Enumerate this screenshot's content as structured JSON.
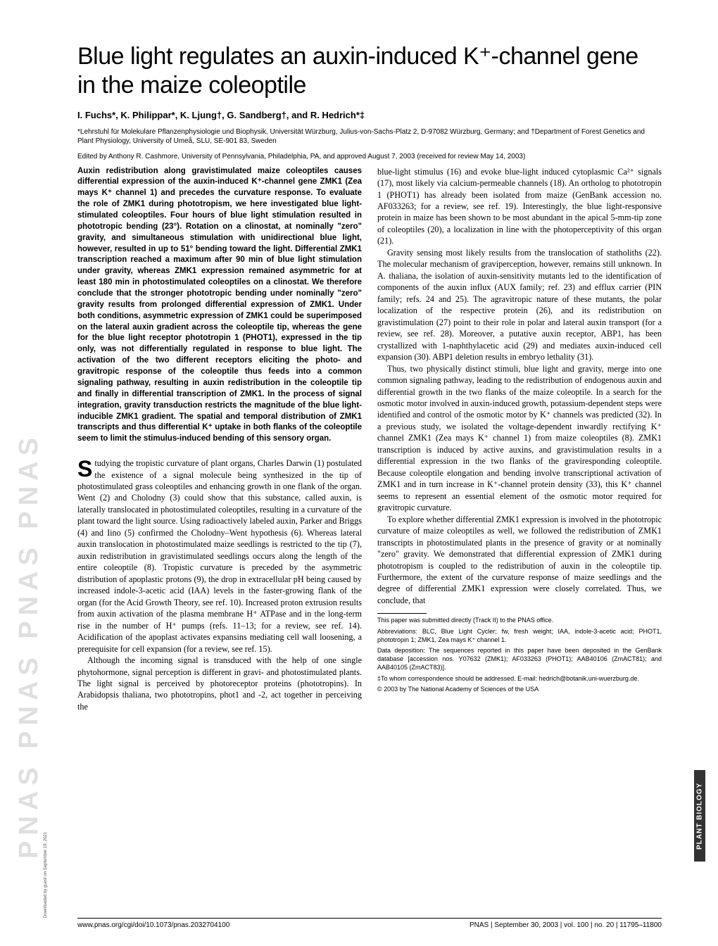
{
  "title": "Blue light regulates an auxin-induced K⁺-channel gene in the maize coleoptile",
  "authors": "I. Fuchs*, K. Philippar*, K. Ljung†, G. Sandberg†, and R. Hedrich*‡",
  "affiliations": "*Lehrstuhl für Molekulare Pflanzenphysiologie und Biophysik, Universität Würzburg, Julius-von-Sachs-Platz 2, D-97082 Würzburg, Germany; and †Department of Forest Genetics and Plant Physiology, University of Umeå, SLU, SE-901 83, Sweden",
  "edited": "Edited by Anthony R. Cashmore, University of Pennsylvania, Philadelphia, PA, and approved August 7, 2003 (received for review May 14, 2003)",
  "abstract": "Auxin redistribution along gravistimulated maize coleoptiles causes differential expression of the auxin-induced K⁺-channel gene ZMK1 (Zea mays K⁺ channel 1) and precedes the curvature response. To evaluate the role of ZMK1 during phototropism, we here investigated blue light-stimulated coleoptiles. Four hours of blue light stimulation resulted in phototropic bending (23°). Rotation on a clinostat, at nominally \"zero\" gravity, and simultaneous stimulation with unidirectional blue light, however, resulted in up to 51° bending toward the light. Differential ZMK1 transcription reached a maximum after 90 min of blue light stimulation under gravity, whereas ZMK1 expression remained asymmetric for at least 180 min in photostimulated coleoptiles on a clinostat. We therefore conclude that the stronger phototropic bending under nominally \"zero\" gravity results from prolonged differential expression of ZMK1. Under both conditions, asymmetric expression of ZMK1 could be superimposed on the lateral auxin gradient across the coleoptile tip, whereas the gene for the blue light receptor phototropin 1 (PHOT1), expressed in the tip only, was not differentially regulated in response to blue light. The activation of the two different receptors eliciting the photo- and gravitropic response of the coleoptile thus feeds into a common signaling pathway, resulting in auxin redistribution in the coleoptile tip and finally in differential transcription of ZMK1. In the process of signal integration, gravity transduction restricts the magnitude of the blue light-inducible ZMK1 gradient. The spatial and temporal distribution of ZMK1 transcripts and thus differential K⁺ uptake in both flanks of the coleoptile seem to limit the stimulus-induced bending of this sensory organ.",
  "body_left_dropcap": "S",
  "body_left_1": "tudying the tropistic curvature of plant organs, Charles Darwin (1) postulated the existence of a signal molecule being synthesized in the tip of photostimulated grass coleoptiles and enhancing growth in one flank of the organ. Went (2) and Cholodny (3) could show that this substance, called auxin, is laterally translocated in photostimulated coleoptiles, resulting in a curvature of the plant toward the light source. Using radioactively labeled auxin, Parker and Briggs (4) and Iino (5) confirmed the Cholodny–Went hypothesis (6). Whereas lateral auxin translocation in photostimulated maize seedlings is restricted to the tip (7), auxin redistribution in gravistimulated seedlings occurs along the length of the entire coleoptile (8). Tropistic curvature is preceded by the asymmetric distribution of apoplastic protons (9), the drop in extracellular pH being caused by increased indole-3-acetic acid (IAA) levels in the faster-growing flank of the organ (for the Acid Growth Theory, see ref. 10). Increased proton extrusion results from auxin activation of the plasma membrane H⁺ ATPase and in the long-term rise in the number of H⁺ pumps (refs. 11–13; for a review, see ref. 14). Acidification of the apoplast activates expansins mediating cell wall loosening, a prerequisite for cell expansion (for a review, see ref. 15).",
  "body_left_2": "Although the incoming signal is transduced with the help of one single phytohormone, signal perception is different in gravi- and photostimulated plants. The light signal is perceived by photoreceptor proteins (phototropins). In Arabidopsis thaliana, two phototropins, phot1 and -2, act together in perceiving the",
  "body_right_1": "blue-light stimulus (16) and evoke blue-light induced cytoplasmic Ca²⁺ signals (17), most likely via calcium-permeable channels (18). An ortholog to phototropin 1 (PHOT1) has already been isolated from maize (GenBank accession no. AF033263; for a review, see ref. 19). Interestingly, the blue light-responsive protein in maize has been shown to be most abundant in the apical 5-mm-tip zone of coleoptiles (20), a localization in line with the photoperceptivity of this organ (21).",
  "body_right_2": "Gravity sensing most likely results from the translocation of statholiths (22). The molecular mechanism of graviperception, however, remains still unknown. In A. thaliana, the isolation of auxin-sensitivity mutants led to the identification of components of the auxin influx (AUX family; ref. 23) and efflux carrier (PIN family; refs. 24 and 25). The agravitropic nature of these mutants, the polar localization of the respective protein (26), and its redistribution on gravistimulation (27) point to their role in polar and lateral auxin transport (for a review, see ref. 28). Moreover, a putative auxin receptor, ABP1, has been crystallized with 1-naphthylacetic acid (29) and mediates auxin-induced cell expansion (30). ABP1 deletion results in embryo lethality (31).",
  "body_right_3": "Thus, two physically distinct stimuli, blue light and gravity, merge into one common signaling pathway, leading to the redistribution of endogenous auxin and differential growth in the two flanks of the maize coleoptile. In a search for the osmotic motor involved in auxin-induced growth, potassium-dependent steps were identified and control of the osmotic motor by K⁺ channels was predicted (32). In a previous study, we isolated the voltage-dependent inwardly rectifying K⁺ channel ZMK1 (Zea mays K⁺ channel 1) from maize coleoptiles (8). ZMK1 transcription is induced by active auxins, and gravistimulation results in a differential expression in the two flanks of the graviresponding coleoptile. Because coleoptile elongation and bending involve transcriptional activation of ZMK1 and in turn increase in K⁺-channel protein density (33), this K⁺ channel seems to represent an essential element of the osmotic motor required for gravitropic curvature.",
  "body_right_4": "To explore whether differential ZMK1 expression is involved in the phototropic curvature of maize coleoptiles as well, we followed the redistribution of ZMK1 transcripts in photostimulated plants in the presence of gravity or at nominally \"zero\" gravity. We demonstrated that differential expression of ZMK1 during phototropism is coupled to the redistribution of auxin in the coleoptile tip. Furthermore, the extent of the curvature response of maize seedlings and the degree of differential ZMK1 expression were closely correlated. Thus, we conclude, that",
  "footnotes": {
    "f1": "This paper was submitted directly (Track II) to the PNAS office.",
    "f2": "Abbreviations: BLC, Blue Light Cycler; fw, fresh weight; IAA, indole-3-acetic acid; PHOT1, phototropin 1; ZMK1, Zea mays K⁺ channel 1.",
    "f3": "Data deposition: The sequences reported in this paper have been deposited in the GenBank database [accession nos. Y07632 (ZMK1); AF033263 (PHOT1); AAB40106 (ZmACT81); and AAB40105 (ZmACT83)].",
    "f4": "‡To whom correspondence should be addressed. E-mail: hedrich@botanik.uni-wuerzburg.de.",
    "f5": "© 2003 by The National Academy of Sciences of the USA"
  },
  "footer": {
    "left": "www.pnas.org/cgi/doi/10.1073/pnas.2032704100",
    "right": "PNAS  |  September 30, 2003  |  vol. 100  |  no. 20  |  11795–11800"
  },
  "side_label": "PLANT BIOLOGY",
  "watermark": "PNAS PNAS PNAS PNAS",
  "download_note": "Downloaded by guest on September 19, 2021"
}
